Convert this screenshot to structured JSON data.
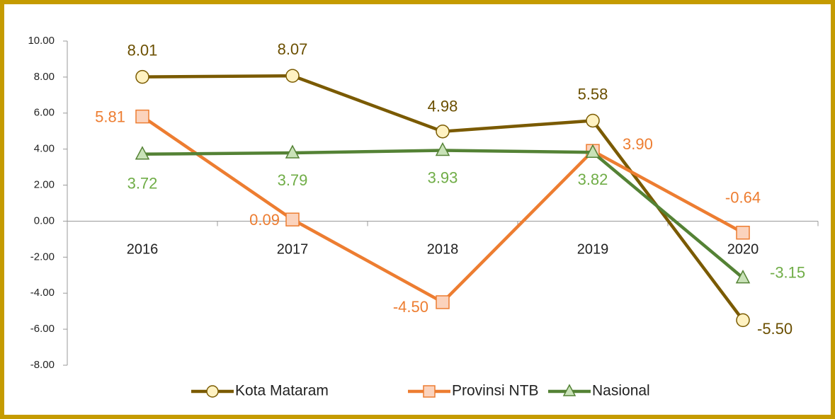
{
  "chart_data": {
    "type": "line",
    "categories": [
      "2016",
      "2017",
      "2018",
      "2019",
      "2020"
    ],
    "series": [
      {
        "name": "Kota Mataram",
        "color": "#7a5a00",
        "marker_fill": "#fff2c2",
        "label_color": "#6b4f00",
        "marker": "circle",
        "values": [
          8.01,
          8.07,
          4.98,
          5.58,
          -5.5
        ],
        "value_labels": [
          "8.01",
          "8.07",
          "4.98",
          "5.58",
          "-5.50"
        ]
      },
      {
        "name": "Provinsi NTB",
        "color": "#ed7d31",
        "marker_fill": "#fbd3bd",
        "label_color": "#ed7d31",
        "marker": "square",
        "values": [
          5.81,
          0.09,
          -4.5,
          3.9,
          -0.64
        ],
        "value_labels": [
          "5.81",
          "0.09",
          "-4.50",
          "3.90",
          "-0.64"
        ]
      },
      {
        "name": "Nasional",
        "color": "#548235",
        "marker_fill": "#c9e2b8",
        "label_color": "#70ad47",
        "marker": "triangle",
        "values": [
          3.72,
          3.79,
          3.93,
          3.82,
          -3.15
        ],
        "value_labels": [
          "3.72",
          "3.79",
          "3.93",
          "3.82",
          "-3.15"
        ]
      }
    ],
    "ylim": [
      -8,
      10
    ],
    "yticks": [
      {
        "value": -8,
        "label": "-8.00"
      },
      {
        "value": -6,
        "label": "-6.00"
      },
      {
        "value": -4,
        "label": "-4.00"
      },
      {
        "value": -2,
        "label": "-2.00"
      },
      {
        "value": 0,
        "label": "0.00"
      },
      {
        "value": 2,
        "label": "2.00"
      },
      {
        "value": 4,
        "label": "4.00"
      },
      {
        "value": 6,
        "label": "6.00"
      },
      {
        "value": 8,
        "label": "8.00"
      },
      {
        "value": 10,
        "label": "10.00"
      }
    ],
    "grid": false,
    "legend": "bottom"
  }
}
